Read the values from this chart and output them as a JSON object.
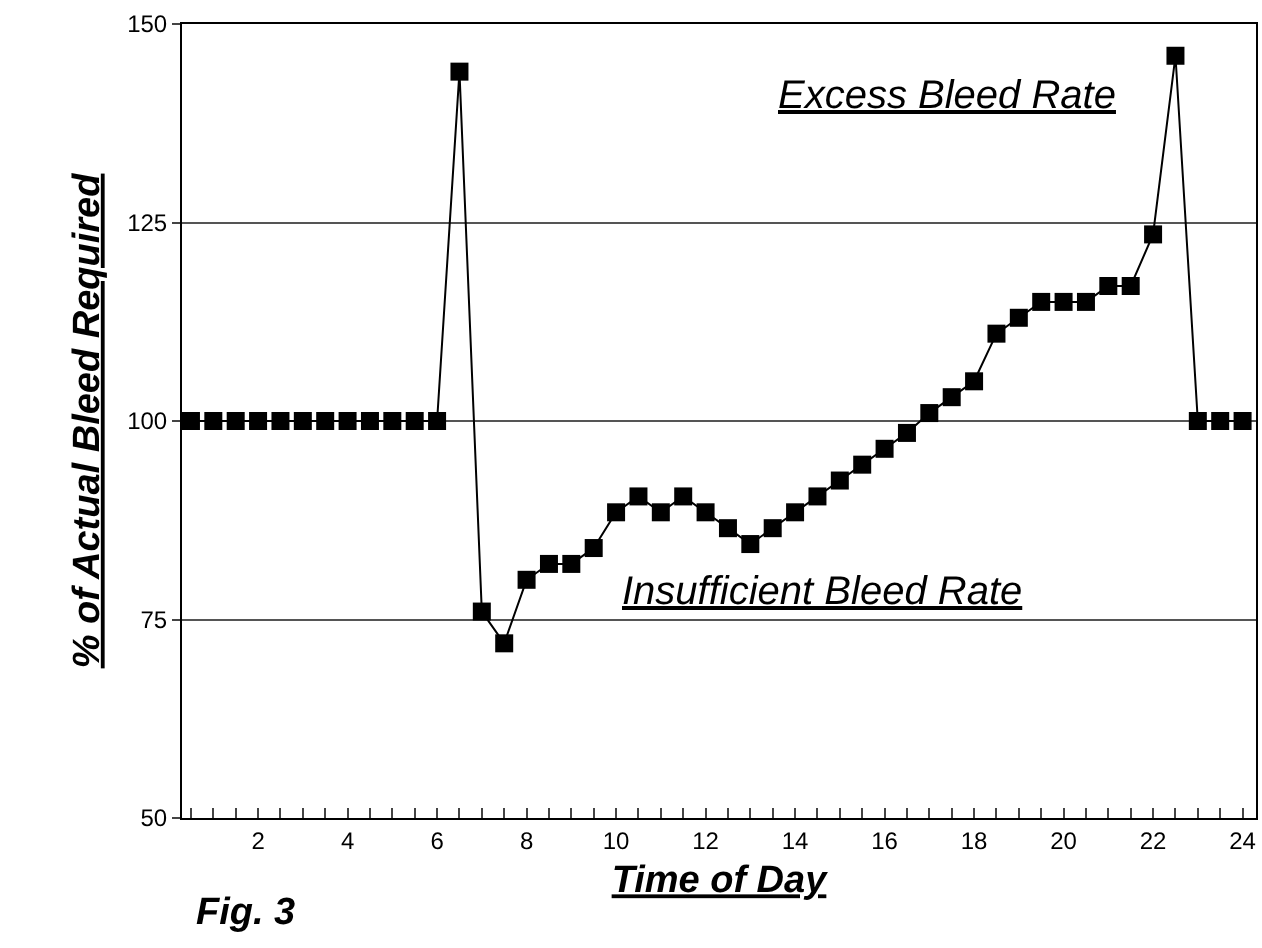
{
  "chart_data": {
    "type": "line",
    "xlabel": "Time of Day",
    "ylabel": "% of Actual Bleed Required",
    "x": [
      0.5,
      1,
      1.5,
      2,
      2.5,
      3,
      3.5,
      4,
      4.5,
      5,
      5.5,
      6,
      6.5,
      7,
      7.5,
      8,
      8.5,
      9,
      9.5,
      10,
      10.5,
      11,
      11.5,
      12,
      12.5,
      13,
      13.5,
      14,
      14.5,
      15,
      15.5,
      16,
      16.5,
      17,
      17.5,
      18,
      18.5,
      19,
      19.5,
      20,
      20.5,
      21,
      21.5,
      22,
      22.5,
      23,
      23.5,
      24
    ],
    "series": [
      {
        "color": "#000000",
        "values": [
          100,
          100,
          100,
          100,
          100,
          100,
          100,
          100,
          100,
          100,
          100,
          100,
          144,
          76,
          72,
          80,
          82,
          82,
          84,
          88.5,
          90.5,
          88.5,
          90.5,
          88.5,
          86.5,
          84.5,
          86.5,
          88.5,
          90.5,
          92.5,
          94.5,
          96.5,
          98.5,
          101,
          103,
          105,
          111,
          113,
          115,
          115,
          115,
          117,
          117,
          123.5,
          146,
          100,
          100,
          100
        ]
      }
    ],
    "xlim": [
      0.3,
      24.3
    ],
    "ylim": [
      50,
      150
    ],
    "yticks": [
      50,
      75,
      100,
      125,
      150
    ],
    "xticks": [
      {
        "value": 0.5,
        "label": null
      },
      {
        "value": 1,
        "label": null
      },
      {
        "value": 1.5,
        "label": null
      },
      2,
      {
        "value": 2.5,
        "label": null
      },
      {
        "value": 3,
        "label": null
      },
      {
        "value": 3.5,
        "label": null
      },
      4,
      {
        "value": 4.5,
        "label": null
      },
      {
        "value": 5,
        "label": null
      },
      {
        "value": 5.5,
        "label": null
      },
      6,
      {
        "value": 6.5,
        "label": null
      },
      {
        "value": 7,
        "label": null
      },
      {
        "value": 7.5,
        "label": null
      },
      8,
      {
        "value": 8.5,
        "label": null
      },
      {
        "value": 9,
        "label": null
      },
      {
        "value": 9.5,
        "label": null
      },
      10,
      {
        "value": 10.5,
        "label": null
      },
      {
        "value": 11,
        "label": null
      },
      {
        "value": 11.5,
        "label": null
      },
      12,
      {
        "value": 12.5,
        "label": null
      },
      {
        "value": 13,
        "label": null
      },
      {
        "value": 13.5,
        "label": null
      },
      14,
      {
        "value": 14.5,
        "label": null
      },
      {
        "value": 15,
        "label": null
      },
      {
        "value": 15.5,
        "label": null
      },
      16,
      {
        "value": 16.5,
        "label": null
      },
      {
        "value": 17,
        "label": null
      },
      {
        "value": 17.5,
        "label": null
      },
      18,
      {
        "value": 18.5,
        "label": null
      },
      {
        "value": 19,
        "label": null
      },
      {
        "value": 19.5,
        "label": null
      },
      20,
      {
        "value": 20.5,
        "label": null
      },
      {
        "value": 21,
        "label": null
      },
      {
        "value": 21.5,
        "label": null
      },
      22,
      {
        "value": 22.5,
        "label": null
      },
      {
        "value": 23,
        "label": null
      },
      {
        "value": 23.5,
        "label": null
      },
      24
    ],
    "grid": "y",
    "marker": "square",
    "line_style": "solid",
    "legend": false,
    "annotations": [
      "Excess Bleed Rate",
      "Insufficient Bleed Rate",
      "Fig. 3"
    ]
  }
}
